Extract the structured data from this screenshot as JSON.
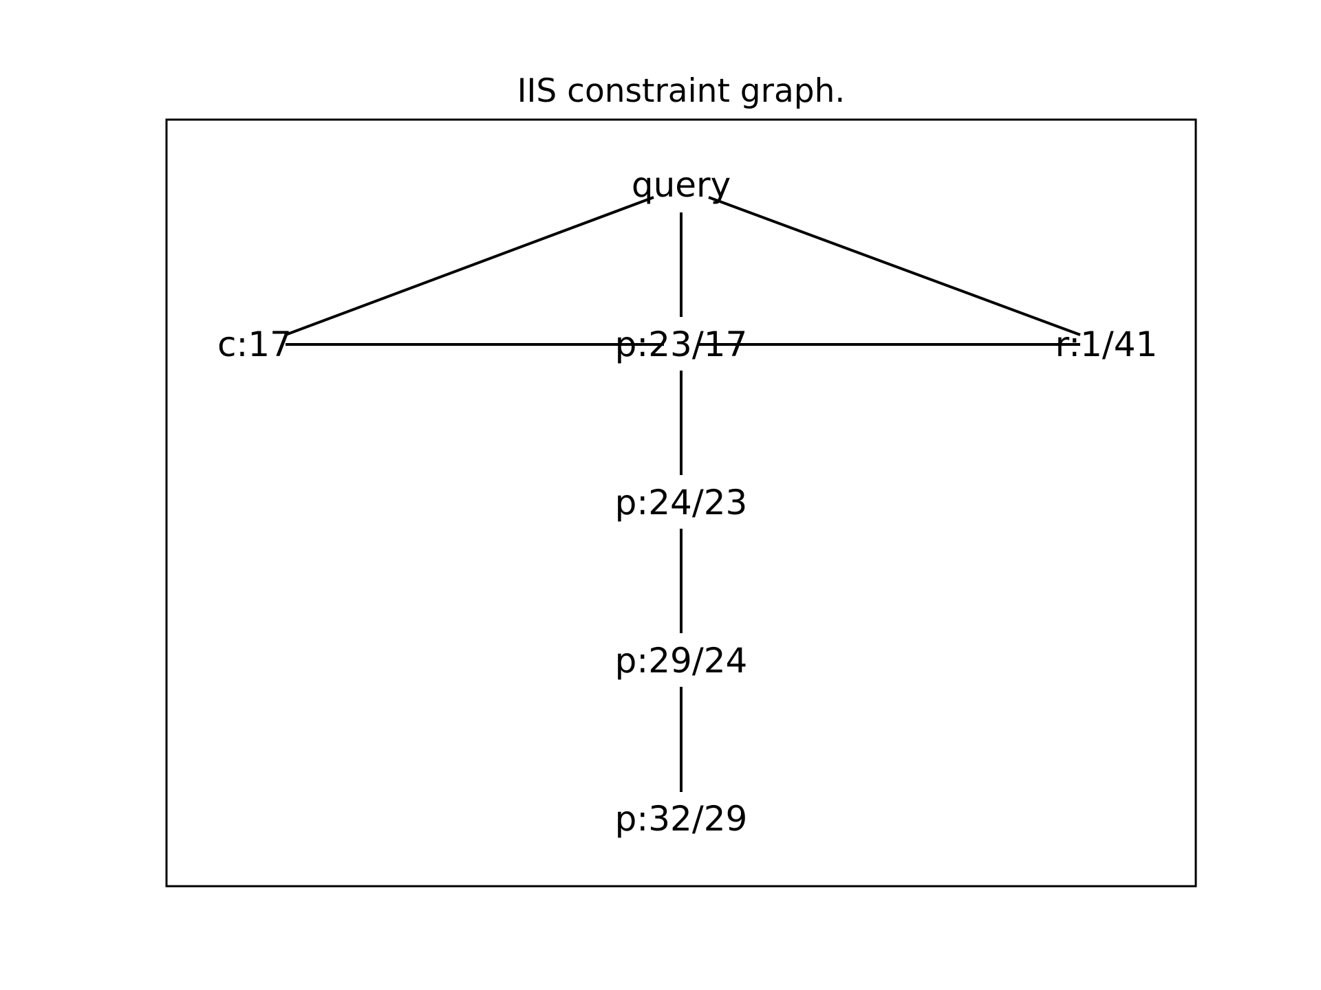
{
  "title": "IIS constraint graph.",
  "colors": {
    "line": "#000000",
    "text": "#000000",
    "background": "#ffffff"
  },
  "nodes": [
    {
      "id": "query",
      "label": "query"
    },
    {
      "id": "c17",
      "label": "c:17"
    },
    {
      "id": "p23_17",
      "label": "p:23/17"
    },
    {
      "id": "r1_41",
      "label": "r:1/41"
    },
    {
      "id": "p24_23",
      "label": "p:24/23"
    },
    {
      "id": "p29_24",
      "label": "p:29/24"
    },
    {
      "id": "p32_29",
      "label": "p:32/29"
    }
  ],
  "edges": [
    {
      "from": "query",
      "to": "c17"
    },
    {
      "from": "query",
      "to": "p23_17"
    },
    {
      "from": "query",
      "to": "r1_41"
    },
    {
      "from": "c17",
      "to": "p23_17"
    },
    {
      "from": "p23_17",
      "to": "r1_41"
    },
    {
      "from": "p23_17",
      "to": "p24_23"
    },
    {
      "from": "p24_23",
      "to": "p29_24"
    },
    {
      "from": "p29_24",
      "to": "p32_29"
    }
  ]
}
